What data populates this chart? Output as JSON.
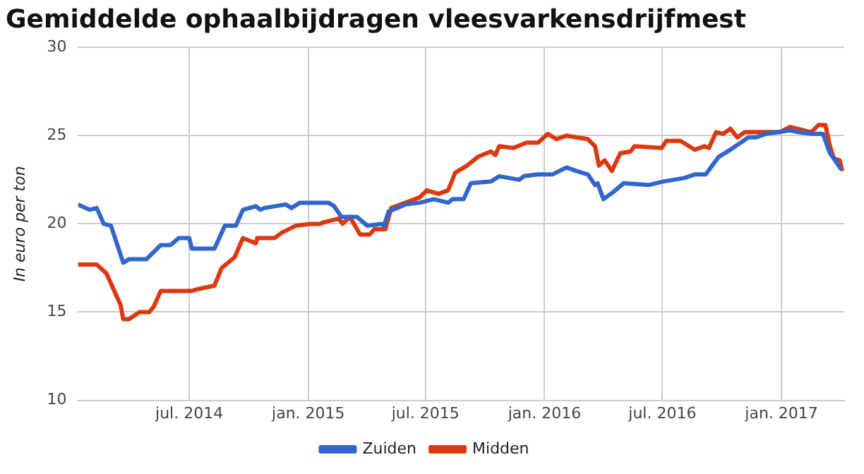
{
  "chart_data": {
    "type": "line",
    "title": "Gemiddelde ophaalbijdragen vleesvarkensdrijfmest",
    "ylabel": "In euro per ton",
    "xlim": [
      "2014-01-10",
      "2017-04-08"
    ],
    "xticks": [
      {
        "value": "2014-07-01",
        "label": "jul. 2014"
      },
      {
        "value": "2015-01-01",
        "label": "jan. 2015"
      },
      {
        "value": "2015-07-01",
        "label": "jul. 2015"
      },
      {
        "value": "2016-01-01",
        "label": "jan. 2016"
      },
      {
        "value": "2016-07-01",
        "label": "jul. 2016"
      },
      {
        "value": "2017-01-01",
        "label": "jan. 2017"
      }
    ],
    "ylim": [
      10,
      30
    ],
    "yticks": [
      10,
      15,
      20,
      25,
      30
    ],
    "grid": true,
    "legend": "bottom",
    "marker": "none",
    "line_style": "solid",
    "series": [
      {
        "name": "Zuiden",
        "color": "#3366cc",
        "x": [
          "2014-01-10",
          "2014-01-28",
          "2014-02-08",
          "2014-02-19",
          "2014-03-02",
          "2014-03-21",
          "2014-03-30",
          "2014-04-26",
          "2014-05-18",
          "2014-06-02",
          "2014-06-15",
          "2014-07-01",
          "2014-07-05",
          "2014-08-09",
          "2014-08-25",
          "2014-09-11",
          "2014-09-22",
          "2014-10-12",
          "2014-10-19",
          "2014-10-25",
          "2014-11-27",
          "2014-12-06",
          "2014-12-19",
          "2015-02-01",
          "2015-02-10",
          "2015-02-21",
          "2015-03-17",
          "2015-04-02",
          "2015-04-24",
          "2015-04-28",
          "2015-05-05",
          "2015-05-31",
          "2015-06-22",
          "2015-07-14",
          "2015-08-05",
          "2015-08-12",
          "2015-08-29",
          "2015-09-09",
          "2015-10-10",
          "2015-10-23",
          "2015-11-23",
          "2015-11-30",
          "2015-12-22",
          "2016-01-13",
          "2016-02-04",
          "2016-02-19",
          "2016-03-08",
          "2016-03-19",
          "2016-03-23",
          "2016-04-01",
          "2016-04-16",
          "2016-05-02",
          "2016-06-10",
          "2016-07-02",
          "2016-08-04",
          "2016-08-20",
          "2016-09-06",
          "2016-09-26",
          "2016-10-14",
          "2016-11-11",
          "2016-11-22",
          "2016-12-08",
          "2017-01-14",
          "2017-01-27",
          "2017-02-18",
          "2017-03-06",
          "2017-03-17",
          "2017-03-23",
          "2017-04-03"
        ],
        "values": [
          21.1,
          20.8,
          20.9,
          20.0,
          19.9,
          17.8,
          18.0,
          18.0,
          18.8,
          18.8,
          19.2,
          19.2,
          18.6,
          18.6,
          19.9,
          19.9,
          20.8,
          21.0,
          20.8,
          20.9,
          21.1,
          20.9,
          21.2,
          21.2,
          21.0,
          20.4,
          20.4,
          19.9,
          20.0,
          19.9,
          20.7,
          21.1,
          21.2,
          21.4,
          21.2,
          21.4,
          21.4,
          22.3,
          22.4,
          22.7,
          22.5,
          22.7,
          22.8,
          22.8,
          23.2,
          23.0,
          22.8,
          22.2,
          22.3,
          21.4,
          21.8,
          22.3,
          22.2,
          22.4,
          22.6,
          22.8,
          22.8,
          23.8,
          24.2,
          24.9,
          24.9,
          25.1,
          25.3,
          25.2,
          25.1,
          25.1,
          24.0,
          23.7,
          23.1
        ]
      },
      {
        "name": "Midden",
        "color": "#dc3912",
        "x": [
          "2014-01-10",
          "2014-02-08",
          "2014-02-23",
          "2014-03-06",
          "2014-03-17",
          "2014-03-21",
          "2014-03-30",
          "2014-04-15",
          "2014-04-30",
          "2014-05-07",
          "2014-05-18",
          "2014-07-05",
          "2014-07-14",
          "2014-08-09",
          "2014-08-20",
          "2014-09-09",
          "2014-09-22",
          "2014-10-12",
          "2014-10-14",
          "2014-11-10",
          "2014-11-21",
          "2014-12-13",
          "2015-01-04",
          "2015-01-19",
          "2015-01-26",
          "2015-02-17",
          "2015-02-23",
          "2015-03-06",
          "2015-03-22",
          "2015-04-06",
          "2015-04-13",
          "2015-04-30",
          "2015-05-09",
          "2015-05-31",
          "2015-06-22",
          "2015-07-03",
          "2015-07-21",
          "2015-08-05",
          "2015-08-16",
          "2015-09-03",
          "2015-09-20",
          "2015-10-10",
          "2015-10-17",
          "2015-10-23",
          "2015-11-14",
          "2015-12-04",
          "2015-12-22",
          "2016-01-06",
          "2016-01-19",
          "2016-02-04",
          "2016-02-19",
          "2016-03-08",
          "2016-03-19",
          "2016-03-25",
          "2016-04-03",
          "2016-04-14",
          "2016-04-27",
          "2016-05-13",
          "2016-05-19",
          "2016-06-30",
          "2016-07-07",
          "2016-07-29",
          "2016-08-20",
          "2016-09-04",
          "2016-09-11",
          "2016-09-22",
          "2016-10-03",
          "2016-10-14",
          "2016-10-25",
          "2016-11-05",
          "2016-12-30",
          "2017-01-14",
          "2017-02-05",
          "2017-02-16",
          "2017-02-27",
          "2017-03-10",
          "2017-03-17",
          "2017-03-23",
          "2017-04-01",
          "2017-04-05"
        ],
        "values": [
          17.7,
          17.7,
          17.2,
          16.3,
          15.4,
          14.6,
          14.6,
          15.0,
          15.0,
          15.3,
          16.2,
          16.2,
          16.3,
          16.5,
          17.5,
          18.1,
          19.2,
          18.9,
          19.2,
          19.2,
          19.5,
          19.9,
          20.0,
          20.0,
          20.1,
          20.3,
          20.0,
          20.4,
          19.4,
          19.4,
          19.7,
          19.7,
          20.9,
          21.2,
          21.5,
          21.9,
          21.7,
          21.9,
          22.9,
          23.3,
          23.8,
          24.1,
          23.9,
          24.4,
          24.3,
          24.6,
          24.6,
          25.1,
          24.8,
          25.0,
          24.9,
          24.8,
          24.4,
          23.3,
          23.6,
          23.0,
          24.0,
          24.1,
          24.4,
          24.3,
          24.7,
          24.7,
          24.2,
          24.4,
          24.3,
          25.2,
          25.1,
          25.4,
          24.9,
          25.2,
          25.2,
          25.5,
          25.3,
          25.2,
          25.6,
          25.6,
          24.4,
          23.7,
          23.6,
          23.0
        ]
      }
    ]
  }
}
